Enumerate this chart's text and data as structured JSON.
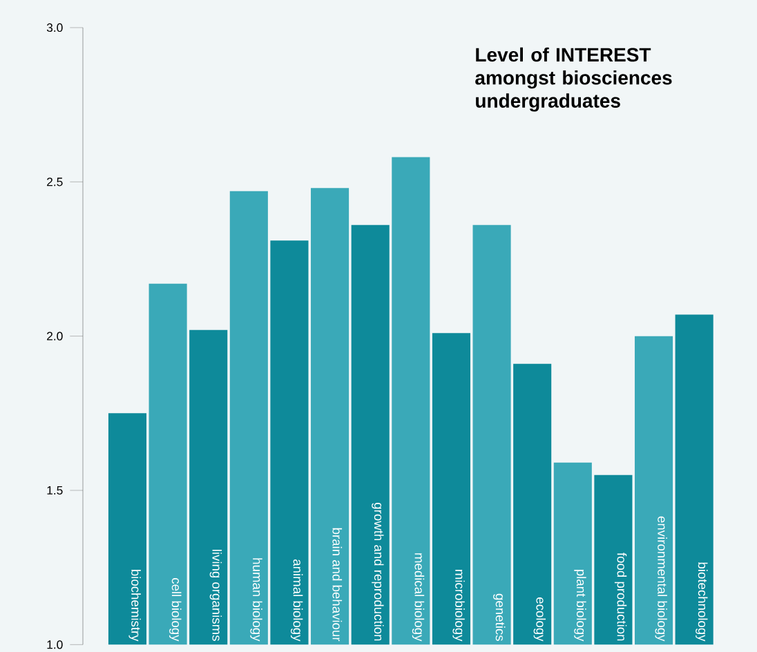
{
  "chart_data": {
    "type": "bar",
    "title": "Level of INTEREST amongst biosciences undergraduates",
    "categories": [
      "biochemistry",
      "cell biology",
      "living organisms",
      "human biology",
      "animal biology",
      "brain and behaviour",
      "growth and reproduction",
      "medical biology",
      "microbiology",
      "genetics",
      "ecology",
      "plant biology",
      "food production",
      "environmental biology",
      "biotechnology"
    ],
    "values": [
      1.75,
      2.17,
      2.02,
      2.47,
      2.31,
      2.48,
      2.36,
      2.58,
      2.01,
      2.36,
      1.91,
      1.59,
      1.55,
      2.0,
      2.07
    ],
    "colors": [
      "#0e8a9a",
      "#3aa9b8",
      "#0e8a9a",
      "#3aa9b8",
      "#0e8a9a",
      "#3aa9b8",
      "#0e8a9a",
      "#3aa9b8",
      "#0e8a9a",
      "#3aa9b8",
      "#0e8a9a",
      "#3aa9b8",
      "#0e8a9a",
      "#3aa9b8",
      "#0e8a9a"
    ],
    "ylim": [
      1.0,
      3.0
    ],
    "yticks": [
      {
        "value": 1.0,
        "label": "1.0"
      },
      {
        "value": 1.5,
        "label": "1.5"
      },
      {
        "value": 2.0,
        "label": "2.0"
      },
      {
        "value": 2.5,
        "label": "2.5"
      },
      {
        "value": 3.0,
        "label": "3.0"
      }
    ],
    "tick_labels": "y"
  }
}
